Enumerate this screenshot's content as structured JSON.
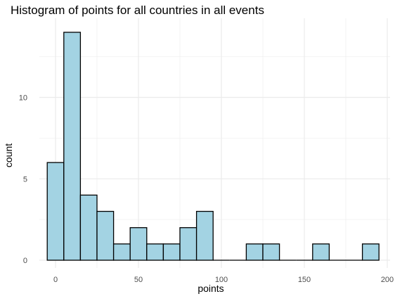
{
  "chart_data": {
    "type": "bar",
    "title": "Histogram of points for all countries in all events",
    "xlabel": "points",
    "ylabel": "count",
    "bin_width": 10,
    "bins": [
      {
        "x": 0,
        "count": 6
      },
      {
        "x": 10,
        "count": 14
      },
      {
        "x": 20,
        "count": 4
      },
      {
        "x": 30,
        "count": 3
      },
      {
        "x": 40,
        "count": 1
      },
      {
        "x": 50,
        "count": 2
      },
      {
        "x": 60,
        "count": 1
      },
      {
        "x": 70,
        "count": 1
      },
      {
        "x": 80,
        "count": 2
      },
      {
        "x": 90,
        "count": 3
      },
      {
        "x": 100,
        "count": 0
      },
      {
        "x": 110,
        "count": 0
      },
      {
        "x": 120,
        "count": 1
      },
      {
        "x": 130,
        "count": 1
      },
      {
        "x": 140,
        "count": 0
      },
      {
        "x": 150,
        "count": 0
      },
      {
        "x": 160,
        "count": 1
      },
      {
        "x": 170,
        "count": 0
      },
      {
        "x": 180,
        "count": 0
      },
      {
        "x": 190,
        "count": 1
      }
    ],
    "xlim": [
      -5,
      200
    ],
    "ylim": [
      0,
      14.5
    ],
    "x_ticks": [
      "0",
      "50",
      "100",
      "150",
      "200"
    ],
    "y_ticks": [
      "0",
      "5",
      "10"
    ],
    "grid": true,
    "bar_fill": "#a3d3e3",
    "bar_stroke": "#000000",
    "grid_color": "#ebebeb"
  }
}
